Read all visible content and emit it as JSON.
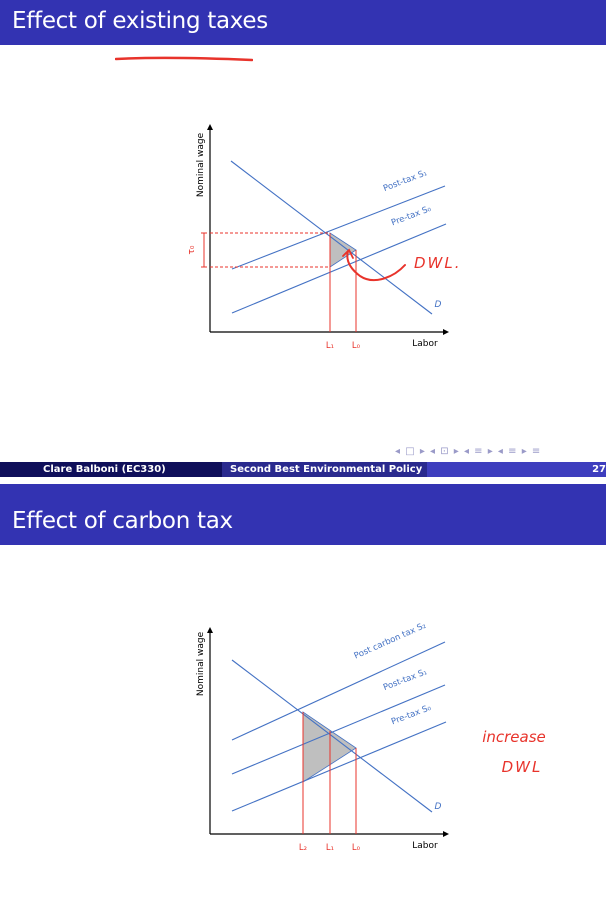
{
  "slide1": {
    "title": "Effect of existing taxes",
    "y_axis_label": "Nominal wage",
    "x_axis_label": "Labor",
    "tau_label": "τ₀",
    "curve_labels": {
      "post_tax": "Post-tax S₁",
      "pre_tax": "Pre-tax S₀",
      "demand": "D"
    },
    "quantity_labels": [
      "L₁",
      "L₀"
    ],
    "handwritten": "DWL."
  },
  "footer": {
    "author": "Clare Balboni (EC330)",
    "talk": "Second Best Environmental Policy",
    "page": "27",
    "nav": "◂ □ ▸ ◂ ⊡ ▸ ◂ ≡ ▸ ◂ ≡ ▸   ≡"
  },
  "slide2": {
    "title": "Effect of carbon tax",
    "y_axis_label": "Nominal wage",
    "x_axis_label": "Labor",
    "curve_labels": {
      "post_carbon": "Post carbon tax S₂",
      "post_tax": "Post-tax S₁",
      "pre_tax": "Pre-tax S₀",
      "demand": "D"
    },
    "quantity_labels": [
      "L₂",
      "L₁",
      "L₀"
    ],
    "handwritten_line1": "increase",
    "handwritten_line2": "DWL"
  },
  "colors": {
    "title_bar": "#3333b2",
    "curve": "#4472c4",
    "annotation_red": "#e8332b",
    "dwl_fill": "#bfbfbf"
  }
}
